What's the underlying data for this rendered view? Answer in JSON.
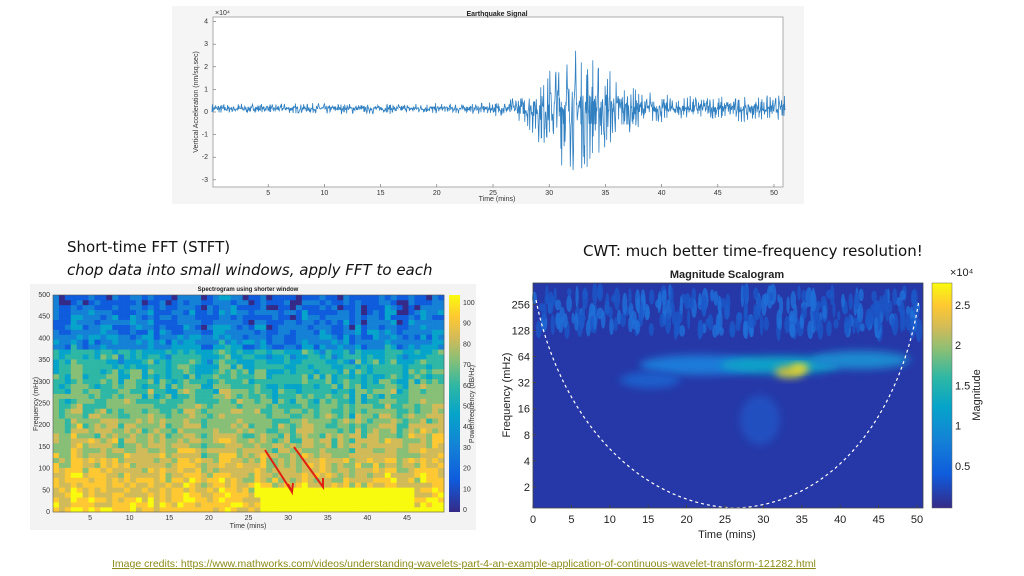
{
  "slide": {
    "stft_heading": "Short-time FFT (STFT)",
    "stft_subheading": "chop data into small windows, apply FFT to each",
    "cwt_heading": "CWT: much better time-frequency resolution!",
    "credits": "Image credits: https://www.mathworks.com/videos/understanding-wavelets-part-4-an-example-application-of-continuous-wavelet-transform-121282.html"
  },
  "signal": {
    "title": "Earthquake Signal",
    "x_label": "Time (mins)",
    "y_label": "Vertical Acceleration (nm/sq.sec)",
    "y_exponent": "×10⁴",
    "xticks": [
      5,
      10,
      15,
      20,
      25,
      30,
      35,
      40,
      45,
      50
    ],
    "yticks": [
      4,
      3,
      2,
      1,
      0,
      -1,
      -2,
      -3
    ]
  },
  "spectrogram": {
    "title": "Spectrogram using shorter window",
    "x_label": "Time (mins)",
    "y_label": "Frequency (mHz)",
    "colorbar_label": "Power/frequency (dB/Hz)",
    "xticks": [
      5,
      10,
      15,
      20,
      25,
      30,
      35,
      40,
      45
    ],
    "yticks": [
      0,
      50,
      100,
      150,
      200,
      250,
      300,
      350,
      400,
      450,
      500
    ],
    "cticks": [
      0,
      10,
      20,
      30,
      40,
      50,
      60,
      70,
      80,
      90,
      100
    ]
  },
  "scalogram": {
    "title": "Magnitude Scalogram",
    "x_label": "Time (mins)",
    "y_label": "Frequency (mHz)",
    "colorbar_label": "Magnitude",
    "colorbar_exponent": "×10⁴",
    "xticks": [
      0,
      5,
      10,
      15,
      20,
      25,
      30,
      35,
      40,
      45,
      50
    ],
    "yticks": [
      2,
      4,
      8,
      16,
      32,
      64,
      128,
      256
    ],
    "cticks": [
      0.5,
      1,
      1.5,
      2,
      2.5
    ]
  }
}
